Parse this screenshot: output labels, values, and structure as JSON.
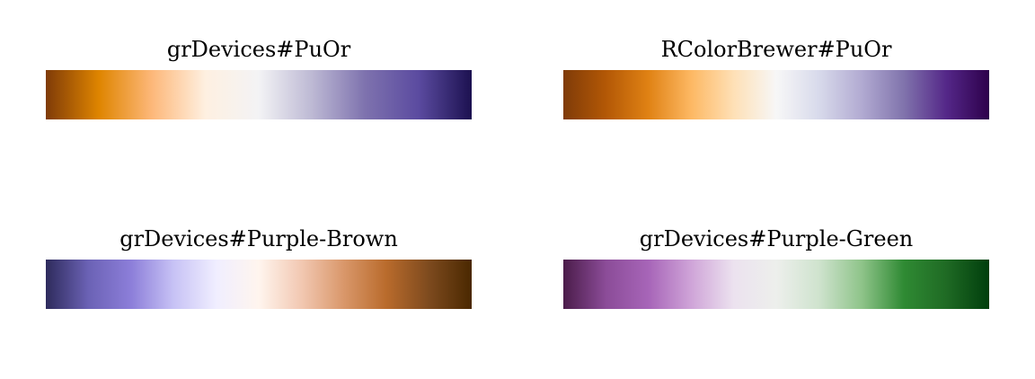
{
  "chart_data": [
    {
      "type": "colorbar",
      "title": "grDevices#PuOr",
      "colors": [
        "#7f3b08",
        "#df8500",
        "#fdb87a",
        "#fef0e1",
        "#f3f3f5",
        "#bdb9d4",
        "#7e72ae",
        "#5b4ba0",
        "#1c1150"
      ]
    },
    {
      "type": "colorbar",
      "title": "RColorBrewer#PuOr",
      "colors": [
        "#7f3b08",
        "#b35806",
        "#e08214",
        "#fdb863",
        "#fee0b6",
        "#f7f7f7",
        "#d8daeb",
        "#b2abd2",
        "#8073ac",
        "#542788",
        "#2d004b"
      ]
    },
    {
      "type": "colorbar",
      "title": "grDevices#Purple-Brown",
      "colors": [
        "#2e2b5c",
        "#6b62b5",
        "#8c7ed9",
        "#c7c2f5",
        "#f0eeff",
        "#fff5ee",
        "#f2c8b2",
        "#d9976a",
        "#b96b2c",
        "#7d4a1e",
        "#4a2800"
      ]
    },
    {
      "type": "colorbar",
      "title": "grDevices#Purple-Green",
      "colors": [
        "#4b1c4a",
        "#8b4c98",
        "#a765b8",
        "#cfa4d8",
        "#ece2ef",
        "#edefec",
        "#cfe3ce",
        "#8fc48a",
        "#2f8a33",
        "#1f6a24",
        "#003e0c"
      ]
    }
  ]
}
